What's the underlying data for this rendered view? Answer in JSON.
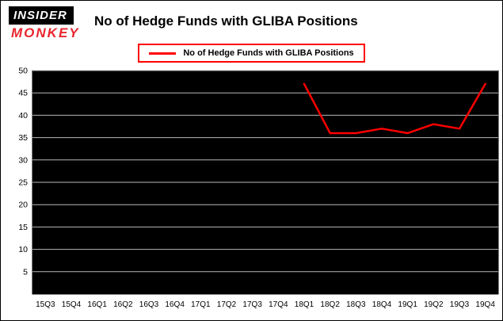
{
  "header": {
    "logo": {
      "line1": "INSIDER",
      "line2": "MONKEY"
    },
    "title": "No of Hedge Funds with GLIBA Positions"
  },
  "legend": {
    "label": "No of Hedge Funds with GLIBA Positions",
    "line_color": "#ff0000"
  },
  "colors": {
    "series_line": "#ff0000",
    "plot_background": "#000000",
    "gridline": "#b8b8b8",
    "logo_red": "#e8262d",
    "text": "#000000"
  },
  "chart_data": {
    "type": "line",
    "title": "No of Hedge Funds with GLIBA Positions",
    "categories": [
      "15Q3",
      "15Q4",
      "16Q1",
      "16Q2",
      "16Q3",
      "16Q4",
      "17Q1",
      "17Q2",
      "17Q3",
      "17Q4",
      "18Q1",
      "18Q2",
      "18Q3",
      "18Q4",
      "19Q1",
      "19Q2",
      "19Q3",
      "19Q4"
    ],
    "series": [
      {
        "name": "No of Hedge Funds with GLIBA Positions",
        "color": "#ff0000",
        "values": [
          null,
          null,
          null,
          null,
          null,
          null,
          null,
          null,
          null,
          null,
          47,
          36,
          36,
          37,
          36,
          38,
          37,
          47
        ]
      }
    ],
    "xlabel": "",
    "ylabel": "",
    "ylim": [
      0,
      50
    ],
    "ytick_step": 5,
    "grid": "horizontal",
    "legend_position": "top-center",
    "plot_background": "#000000"
  }
}
